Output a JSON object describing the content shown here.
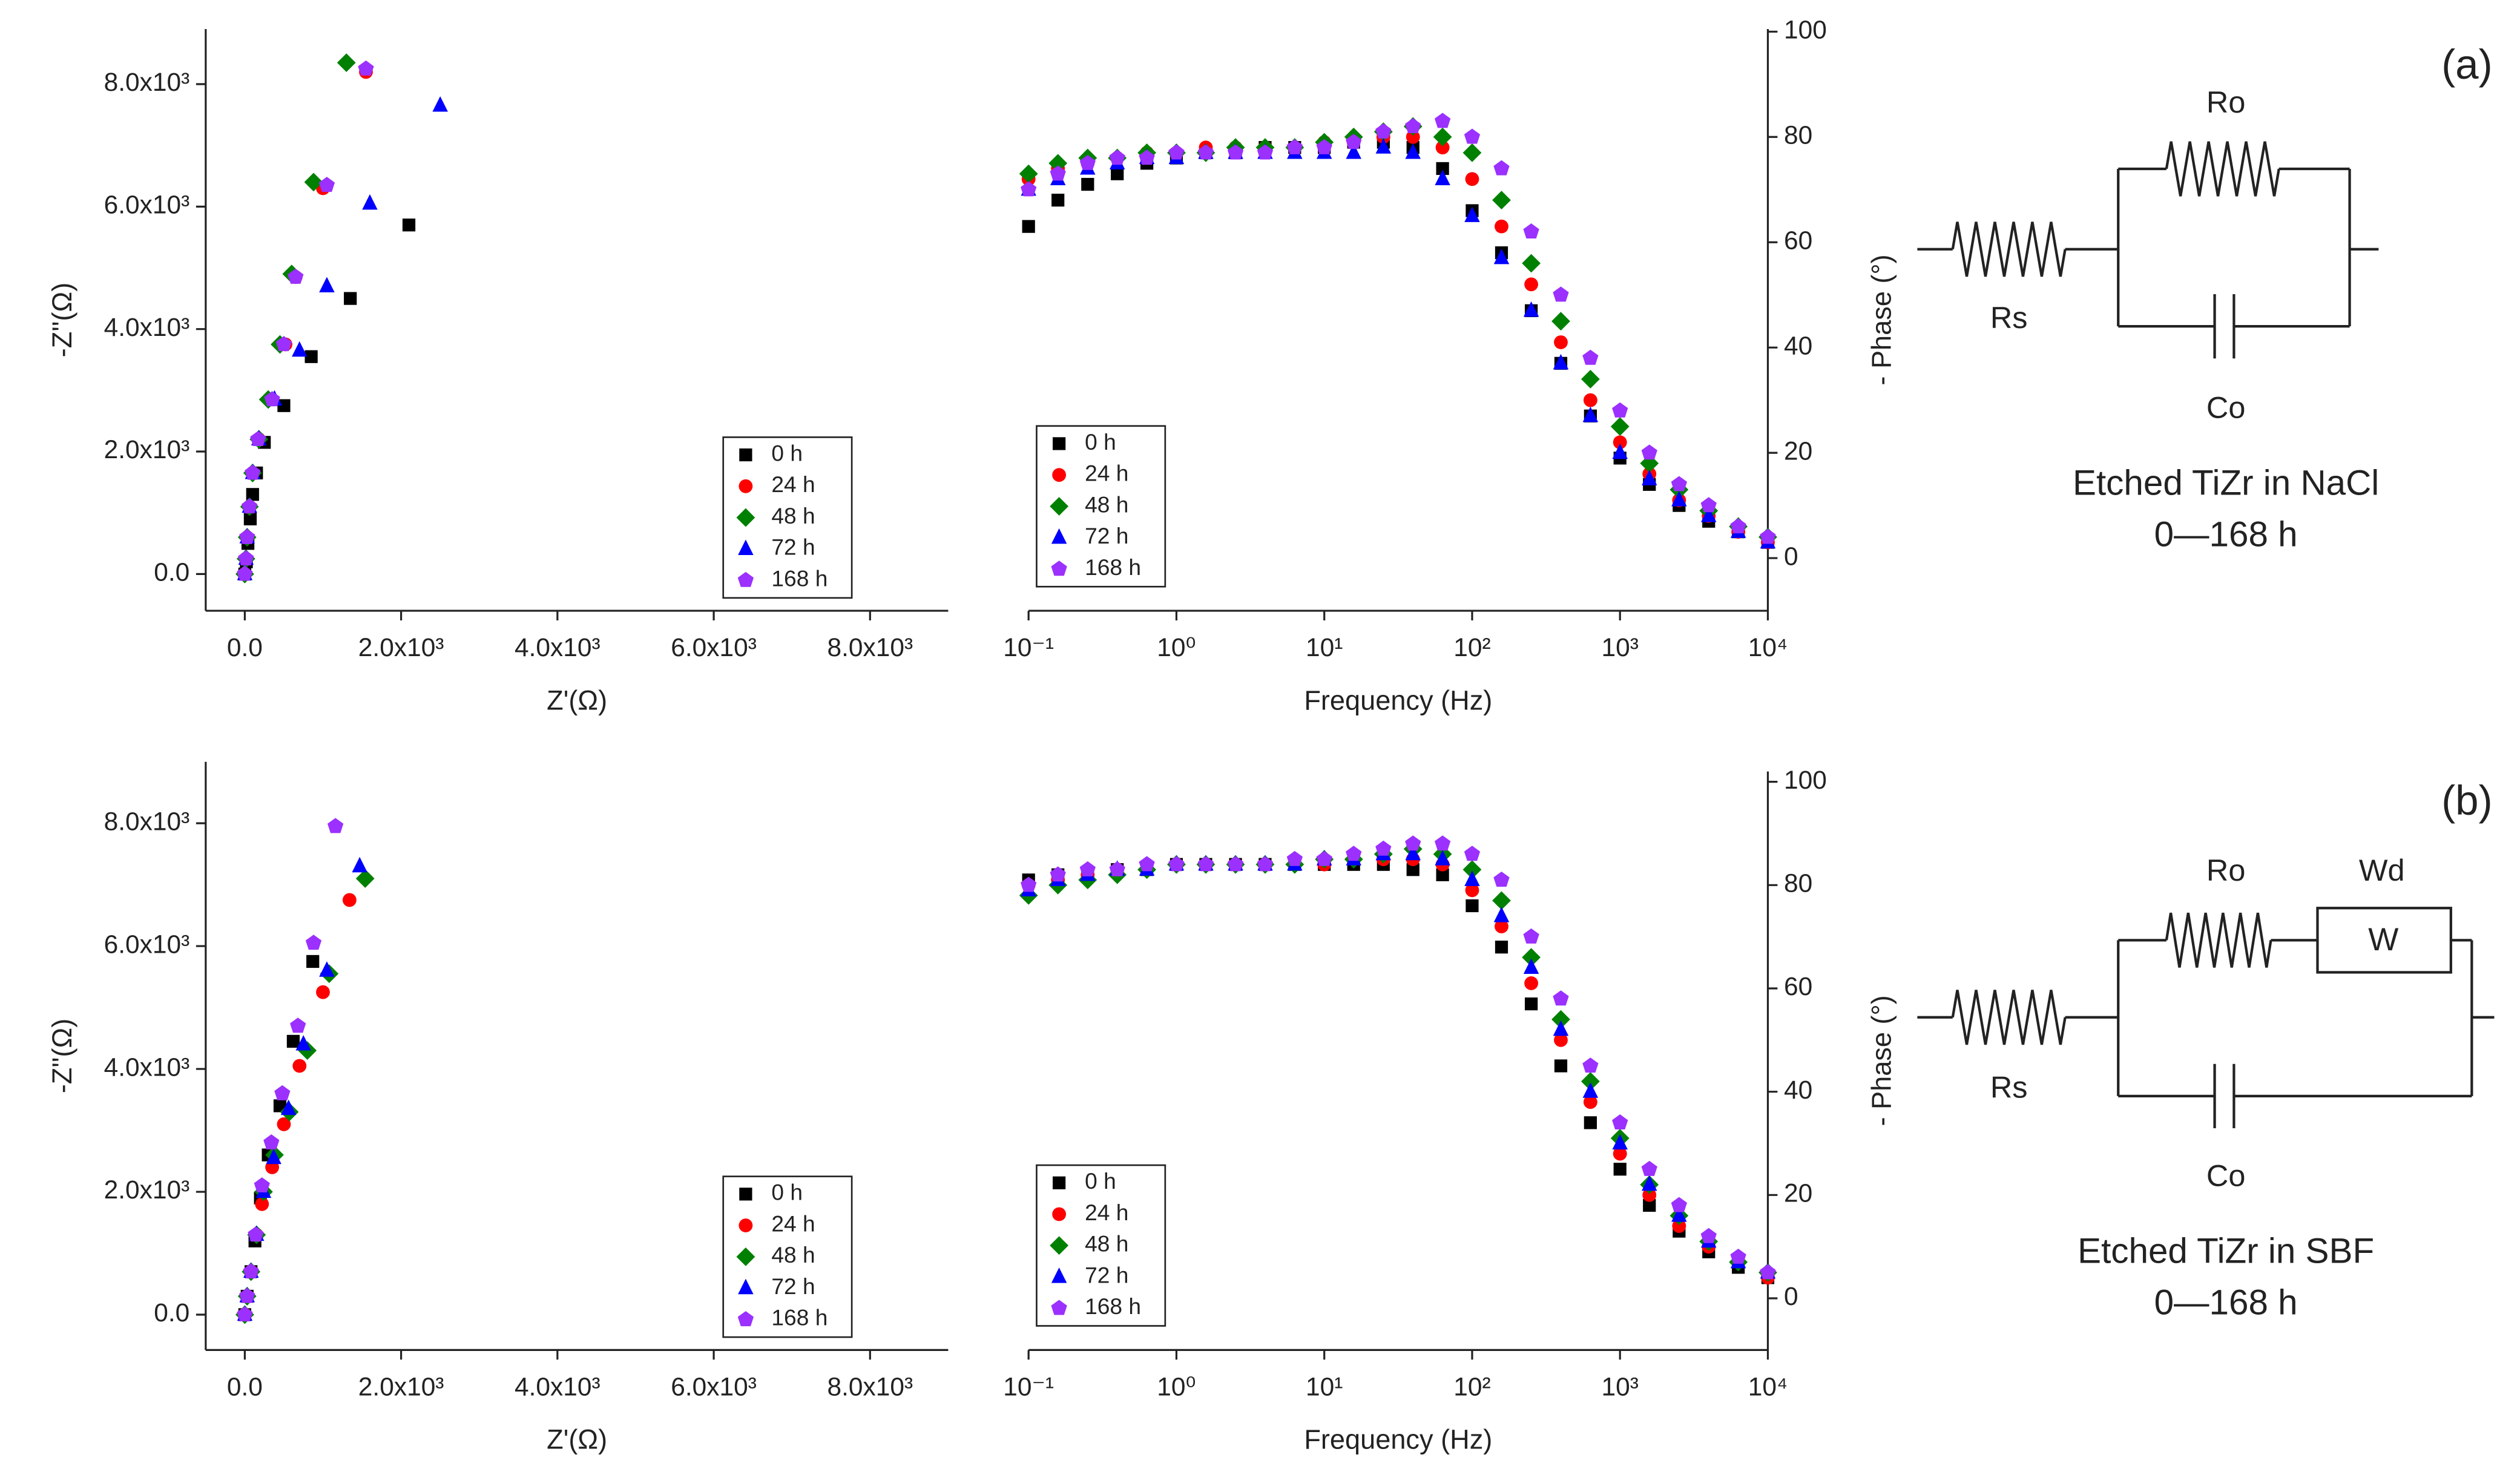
{
  "chart_data": [
    {
      "type": "scatter",
      "xlabel": "Z'(Ω)",
      "ylabel": "-Z''(Ω)",
      "xlim": [
        -500,
        9000
      ],
      "ylim": [
        -600,
        8900
      ],
      "xticks": [
        {
          "value": 0,
          "label": "0.0"
        },
        {
          "value": 2000,
          "label": "2.0x10³"
        },
        {
          "value": 4000,
          "label": "4.0x10³"
        },
        {
          "value": 6000,
          "label": "6.0x10³"
        },
        {
          "value": 8000,
          "label": "8.0x10³"
        }
      ],
      "yticks": [
        {
          "value": 0,
          "label": "0.0"
        },
        {
          "value": 2000,
          "label": "2.0x10³"
        },
        {
          "value": 4000,
          "label": "4.0x10³"
        },
        {
          "value": 6000,
          "label": "6.0x10³"
        },
        {
          "value": 8000,
          "label": "8.0x10³"
        }
      ],
      "legend": "lower right",
      "series": [
        {
          "name": "0 h",
          "color": "#000000",
          "marker": "square",
          "x": [
            0,
            20,
            40,
            70,
            100,
            150,
            250,
            500,
            850,
            1350,
            2100
          ],
          "values": [
            0,
            200,
            500,
            900,
            1300,
            1650,
            2150,
            2750,
            3550,
            4500,
            5700
          ]
        },
        {
          "name": "24 h",
          "color": "#ff0000",
          "marker": "circle",
          "x": [
            0,
            15,
            30,
            60,
            100,
            180,
            320,
            520,
            650,
            1000,
            1550
          ],
          "values": [
            0,
            250,
            600,
            1100,
            1650,
            2200,
            2850,
            3750,
            4850,
            6300,
            8200
          ]
        },
        {
          "name": "48 h",
          "color": "#008000",
          "marker": "diamond",
          "x": [
            0,
            15,
            30,
            60,
            100,
            180,
            300,
            450,
            600,
            880,
            1300
          ],
          "values": [
            0,
            250,
            600,
            1100,
            1650,
            2200,
            2850,
            3750,
            4900,
            6400,
            8350
          ]
        },
        {
          "name": "72 h",
          "color": "#0000ff",
          "marker": "triangle",
          "x": [
            0,
            15,
            30,
            60,
            100,
            180,
            380,
            700,
            1050,
            1600,
            2500
          ],
          "values": [
            0,
            250,
            600,
            1100,
            1650,
            2200,
            2850,
            3650,
            4700,
            6050,
            7650
          ]
        },
        {
          "name": "168 h",
          "color": "#9b30ff",
          "marker": "pentagon",
          "x": [
            0,
            15,
            30,
            60,
            100,
            170,
            350,
            500,
            650,
            1050,
            1550
          ],
          "values": [
            0,
            250,
            600,
            1100,
            1650,
            2200,
            2850,
            3750,
            4850,
            6350,
            8250
          ]
        }
      ]
    },
    {
      "type": "scatter",
      "xlabel": "Frequency (Hz)",
      "ylabel": "- Phase (°)",
      "logx": true,
      "yaxis": "right",
      "xlim": [
        0.1,
        10000
      ],
      "ylim": [
        -10,
        100.5
      ],
      "xticks": [
        {
          "value": 0.1,
          "label": "10⁻¹"
        },
        {
          "value": 1,
          "label": "10⁰"
        },
        {
          "value": 10,
          "label": "10¹"
        },
        {
          "value": 100,
          "label": "10²"
        },
        {
          "value": 1000,
          "label": "10³"
        },
        {
          "value": 10000,
          "label": "10⁴"
        }
      ],
      "yticks": [
        0,
        20,
        40,
        60,
        80,
        100
      ],
      "legend": "lower left",
      "x": [
        0.1,
        0.158,
        0.251,
        0.398,
        0.631,
        1,
        1.58,
        2.51,
        3.98,
        6.31,
        10,
        15.8,
        25.1,
        39.8,
        63.1,
        100,
        158,
        251,
        398,
        631,
        1000,
        1580,
        2510,
        3980,
        6310,
        10000
      ],
      "series": [
        {
          "name": "0 h",
          "color": "#000000",
          "marker": "square",
          "values": [
            63,
            68,
            71,
            73,
            75,
            76,
            77,
            77,
            78,
            78,
            78,
            79,
            79,
            78,
            74,
            66,
            58,
            47,
            37,
            27,
            19,
            14,
            10,
            7,
            5,
            3
          ]
        },
        {
          "name": "24 h",
          "color": "#ff0000",
          "marker": "circle",
          "values": [
            72,
            74,
            75,
            76,
            77,
            77,
            78,
            78,
            78,
            78,
            79,
            79,
            80,
            80,
            78,
            72,
            63,
            52,
            41,
            30,
            22,
            16,
            11,
            8,
            5,
            3
          ]
        },
        {
          "name": "48 h",
          "color": "#008000",
          "marker": "diamond",
          "values": [
            73,
            75,
            76,
            76,
            77,
            77,
            77,
            78,
            78,
            78,
            79,
            80,
            81,
            82,
            80,
            77,
            68,
            56,
            45,
            34,
            25,
            18,
            13,
            9,
            6,
            4
          ]
        },
        {
          "name": "72 h",
          "color": "#0000ff",
          "marker": "triangle",
          "values": [
            70,
            72,
            74,
            75,
            76,
            76,
            77,
            77,
            77,
            77,
            77,
            77,
            78,
            77,
            72,
            65,
            57,
            47,
            37,
            27,
            20,
            15,
            11,
            8,
            5,
            3
          ]
        },
        {
          "name": "168 h",
          "color": "#9b30ff",
          "marker": "pentagon",
          "values": [
            70,
            73,
            75,
            76,
            76,
            77,
            77,
            77,
            77,
            78,
            78,
            79,
            81,
            82,
            83,
            80,
            74,
            62,
            50,
            38,
            28,
            20,
            14,
            10,
            6,
            4
          ]
        }
      ]
    },
    {
      "type": "scatter",
      "xlabel": "Z'(Ω)",
      "ylabel": "-Z''(Ω)",
      "xlim": [
        -500,
        9000
      ],
      "ylim": [
        -575,
        9000
      ],
      "xticks": [
        {
          "value": 0,
          "label": "0.0"
        },
        {
          "value": 2000,
          "label": "2.0x10³"
        },
        {
          "value": 4000,
          "label": "4.0x10³"
        },
        {
          "value": 6000,
          "label": "6.0x10³"
        },
        {
          "value": 8000,
          "label": "8.0x10³"
        }
      ],
      "yticks": [
        {
          "value": 0,
          "label": "0.0"
        },
        {
          "value": 2000,
          "label": "2.0x10³"
        },
        {
          "value": 4000,
          "label": "4.0x10³"
        },
        {
          "value": 6000,
          "label": "6.0x10³"
        },
        {
          "value": 8000,
          "label": "8.0x10³"
        }
      ],
      "legend": "lower right",
      "series": [
        {
          "name": "0 h",
          "color": "#000000",
          "marker": "square",
          "x": [
            0,
            30,
            80,
            130,
            200,
            300,
            450,
            620,
            870
          ],
          "values": [
            0,
            300,
            700,
            1200,
            1900,
            2600,
            3400,
            4450,
            5750
          ]
        },
        {
          "name": "24 h",
          "color": "#ff0000",
          "marker": "circle",
          "x": [
            0,
            30,
            80,
            150,
            220,
            350,
            500,
            700,
            1000,
            1340
          ],
          "values": [
            0,
            300,
            700,
            1300,
            1800,
            2400,
            3100,
            4050,
            5250,
            6750
          ]
        },
        {
          "name": "48 h",
          "color": "#008000",
          "marker": "diamond",
          "x": [
            0,
            30,
            80,
            150,
            240,
            380,
            570,
            800,
            1080,
            1540
          ],
          "values": [
            0,
            300,
            700,
            1300,
            2000,
            2600,
            3300,
            4300,
            5550,
            7100
          ]
        },
        {
          "name": "72 h",
          "color": "#0000ff",
          "marker": "triangle",
          "x": [
            0,
            30,
            80,
            150,
            240,
            370,
            560,
            750,
            1050,
            1470
          ],
          "values": [
            0,
            300,
            700,
            1300,
            2000,
            2550,
            3350,
            4400,
            5600,
            7300
          ]
        },
        {
          "name": "168 h",
          "color": "#9b30ff",
          "marker": "pentagon",
          "x": [
            0,
            30,
            80,
            140,
            220,
            340,
            480,
            680,
            880,
            1160
          ],
          "values": [
            0,
            300,
            700,
            1300,
            2100,
            2800,
            3600,
            4700,
            6050,
            7950
          ]
        }
      ]
    },
    {
      "type": "scatter",
      "xlabel": "Frequency (Hz)",
      "ylabel": "- Phase (°)",
      "logx": true,
      "yaxis": "right",
      "xlim": [
        0.1,
        10000
      ],
      "ylim": [
        -10,
        102
      ],
      "xticks": [
        {
          "value": 0.1,
          "label": "10⁻¹"
        },
        {
          "value": 1,
          "label": "10⁰"
        },
        {
          "value": 10,
          "label": "10¹"
        },
        {
          "value": 100,
          "label": "10²"
        },
        {
          "value": 1000,
          "label": "10³"
        },
        {
          "value": 10000,
          "label": "10⁴"
        }
      ],
      "yticks": [
        0,
        20,
        40,
        60,
        80,
        100
      ],
      "legend": "lower left",
      "x": [
        0.1,
        0.158,
        0.251,
        0.398,
        0.631,
        1,
        1.58,
        2.51,
        3.98,
        6.31,
        10,
        15.8,
        25.1,
        39.8,
        63.1,
        100,
        158,
        251,
        398,
        631,
        1000,
        1580,
        2510,
        3980,
        6310,
        10000
      ],
      "series": [
        {
          "name": "0 h",
          "color": "#000000",
          "marker": "square",
          "values": [
            81,
            82,
            82,
            83,
            83,
            84,
            84,
            84,
            84,
            84,
            84,
            84,
            84,
            83,
            82,
            76,
            68,
            57,
            45,
            34,
            25,
            18,
            13,
            9,
            6,
            4
          ]
        },
        {
          "name": "24 h",
          "color": "#ff0000",
          "marker": "circle",
          "values": [
            80,
            81,
            82,
            83,
            83,
            84,
            84,
            84,
            84,
            84,
            84,
            85,
            85,
            85,
            84,
            79,
            72,
            61,
            50,
            38,
            28,
            20,
            14,
            10,
            7,
            4
          ]
        },
        {
          "name": "48 h",
          "color": "#008000",
          "marker": "diamond",
          "values": [
            78,
            80,
            81,
            82,
            83,
            84,
            84,
            84,
            84,
            84,
            85,
            85,
            86,
            87,
            86,
            83,
            77,
            66,
            54,
            42,
            31,
            22,
            16,
            11,
            7,
            5
          ]
        },
        {
          "name": "72 h",
          "color": "#0000ff",
          "marker": "triangle",
          "values": [
            79,
            81,
            82,
            83,
            83,
            84,
            84,
            84,
            84,
            84,
            85,
            85,
            86,
            86,
            85,
            81,
            74,
            64,
            52,
            40,
            30,
            22,
            16,
            11,
            7,
            5
          ]
        },
        {
          "name": "168 h",
          "color": "#9b30ff",
          "marker": "pentagon",
          "values": [
            80,
            82,
            83,
            83,
            84,
            84,
            84,
            84,
            84,
            85,
            85,
            86,
            87,
            88,
            88,
            86,
            81,
            70,
            58,
            45,
            34,
            25,
            18,
            12,
            8,
            5
          ]
        }
      ]
    }
  ],
  "circuits": [
    {
      "panel": "(a)",
      "top_resistor": "Ro",
      "series_resistor": "Rs",
      "capacitor": "Co",
      "caption_line1": "Etched TiZr in NaCl",
      "caption_line2": "0—168 h"
    },
    {
      "panel": "(b)",
      "top_resistor": "Ro",
      "warburg_label": "Wd",
      "warburg_symbol": "W",
      "series_resistor": "Rs",
      "capacitor": "Co",
      "caption_line1": "Etched TiZr in SBF",
      "caption_line2": "0—168 h"
    }
  ]
}
